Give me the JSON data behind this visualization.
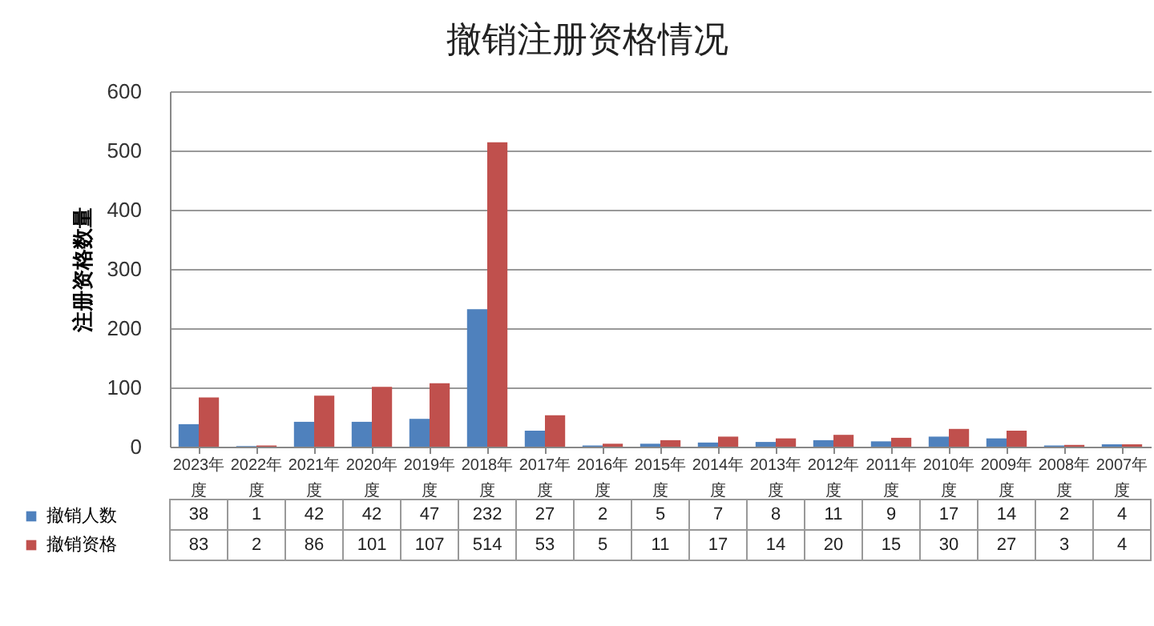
{
  "chart_data": {
    "type": "bar",
    "title": "撤销注册资格情况",
    "ylabel": "注册资格数量",
    "categories": [
      "2023年度",
      "2022年度",
      "2021年度",
      "2020年度",
      "2019年度",
      "2018年度",
      "2017年度",
      "2016年度",
      "2015年度",
      "2014年度",
      "2013年度",
      "2012年度",
      "2011年度",
      "2010年度",
      "2009年度",
      "2008年度",
      "2007年度"
    ],
    "series": [
      {
        "name": "撤销人数",
        "color": "#4f81bd",
        "values": [
          38,
          1,
          42,
          42,
          47,
          232,
          27,
          2,
          5,
          7,
          8,
          11,
          9,
          17,
          14,
          2,
          4
        ]
      },
      {
        "name": "撤销资格",
        "color": "#c0504d",
        "values": [
          83,
          2,
          86,
          101,
          107,
          514,
          53,
          5,
          11,
          17,
          14,
          20,
          15,
          30,
          27,
          3,
          4
        ]
      }
    ],
    "ylim": [
      0,
      600
    ],
    "yticks": [
      0,
      100,
      200,
      300,
      400,
      500,
      600
    ],
    "grid": "y",
    "data_labels": true,
    "legend": "bottom left"
  }
}
